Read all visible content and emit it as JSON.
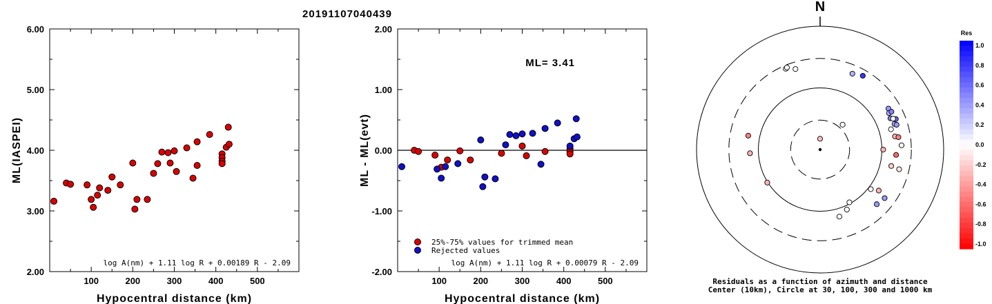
{
  "page_title": "20191107040439",
  "colors": {
    "red": "#dd0000",
    "blue": "#1010cc"
  },
  "chart_data": [
    {
      "type": "scatter",
      "id": "ml-vs-distance",
      "title": "",
      "xlabel": "Hypocentral distance (km)",
      "ylabel": "ML(IASPEI)",
      "xlim": [
        0,
        600
      ],
      "ylim": [
        2.0,
        6.0
      ],
      "xticks": [
        "100",
        "200",
        "300",
        "400",
        "500"
      ],
      "yticks": [
        "2.00",
        "3.00",
        "4.00",
        "5.00",
        "6.00"
      ],
      "formula": "log A(nm) + 1.11 log R + 0.00189 R - 2.09",
      "points": [
        [
          10,
          3.16
        ],
        [
          40,
          3.46
        ],
        [
          50,
          3.44
        ],
        [
          90,
          3.43
        ],
        [
          100,
          3.19
        ],
        [
          105,
          3.06
        ],
        [
          115,
          3.26
        ],
        [
          120,
          3.38
        ],
        [
          140,
          3.34
        ],
        [
          150,
          3.56
        ],
        [
          170,
          3.43
        ],
        [
          200,
          3.79
        ],
        [
          205,
          3.03
        ],
        [
          210,
          3.19
        ],
        [
          235,
          3.19
        ],
        [
          250,
          3.62
        ],
        [
          260,
          3.78
        ],
        [
          270,
          3.97
        ],
        [
          285,
          3.96
        ],
        [
          290,
          3.79
        ],
        [
          300,
          3.99
        ],
        [
          305,
          3.65
        ],
        [
          330,
          4.04
        ],
        [
          345,
          3.54
        ],
        [
          355,
          4.14
        ],
        [
          355,
          3.75
        ],
        [
          385,
          4.26
        ],
        [
          415,
          3.94
        ],
        [
          415,
          3.88
        ],
        [
          415,
          3.82
        ],
        [
          415,
          3.78
        ],
        [
          425,
          4.05
        ],
        [
          430,
          4.38
        ],
        [
          432,
          4.1
        ]
      ]
    },
    {
      "type": "scatter",
      "id": "residual-vs-distance",
      "title": "",
      "xlabel": "Hypocentral distance (km)",
      "ylabel": "ML - ML(evt)",
      "xlim": [
        0,
        600
      ],
      "ylim": [
        -2.0,
        2.0
      ],
      "xticks": [
        "100",
        "200",
        "300",
        "400",
        "500"
      ],
      "yticks": [
        "-2.00",
        "-1.00",
        "0.00",
        "1.00",
        "2.00"
      ],
      "ml_label": "ML= 3.41",
      "formula": "log A(nm) + 1.11 log R + 0.00079 R - 2.09",
      "legend": [
        {
          "label": "25%-75% values for trimmed mean",
          "color": "red"
        },
        {
          "label": "Rejected values",
          "color": "blue"
        }
      ],
      "series": [
        {
          "name": "25%-75% values for trimmed mean",
          "color": "red",
          "points": [
            [
              40,
              0.0
            ],
            [
              50,
              -0.02
            ],
            [
              90,
              -0.08
            ],
            [
              105,
              -0.28
            ],
            [
              120,
              -0.16
            ],
            [
              150,
              -0.01
            ],
            [
              175,
              -0.16
            ],
            [
              250,
              -0.05
            ],
            [
              300,
              0.07
            ],
            [
              310,
              -0.09
            ],
            [
              355,
              -0.02
            ],
            [
              415,
              0.03
            ],
            [
              415,
              -0.02
            ],
            [
              415,
              -0.06
            ]
          ]
        },
        {
          "name": "Rejected values",
          "color": "blue",
          "points": [
            [
              10,
              -0.27
            ],
            [
              95,
              -0.31
            ],
            [
              105,
              -0.46
            ],
            [
              115,
              -0.27
            ],
            [
              145,
              -0.22
            ],
            [
              200,
              0.17
            ],
            [
              205,
              -0.6
            ],
            [
              210,
              -0.44
            ],
            [
              235,
              -0.47
            ],
            [
              260,
              0.09
            ],
            [
              270,
              0.26
            ],
            [
              285,
              0.24
            ],
            [
              300,
              0.27
            ],
            [
              325,
              0.28
            ],
            [
              345,
              -0.23
            ],
            [
              355,
              0.36
            ],
            [
              385,
              0.45
            ],
            [
              415,
              0.07
            ],
            [
              425,
              0.19
            ],
            [
              430,
              0.52
            ],
            [
              432,
              0.22
            ]
          ]
        }
      ]
    },
    {
      "type": "polar-scatter",
      "id": "azimuth-residuals",
      "north_label": "N",
      "caption_line1": "Residuals as a function of azimuth and distance",
      "caption_line2": "Center (10km), Circle at 30, 100, 300 and 1000 km",
      "rings_km": [
        30,
        100,
        300,
        1000
      ],
      "colorbar": {
        "title": "Res",
        "min": -1.0,
        "max": 1.0,
        "ticks": [
          "1.0",
          "0.8",
          "0.6",
          "0.4",
          "0.2",
          "0.0",
          "-0.2",
          "-0.4",
          "-0.6",
          "-0.8",
          "-1.0"
        ]
      },
      "points": [
        {
          "az": 0,
          "dist_km": 15,
          "res": -0.25
        },
        {
          "az": 42,
          "dist_km": 35,
          "res": 0.0
        },
        {
          "az": 343,
          "dist_km": 232,
          "res": 0.0
        },
        {
          "az": 337,
          "dist_km": 265,
          "res": 0.0
        },
        {
          "az": 338,
          "dist_km": 272,
          "res": 0.0
        },
        {
          "az": 23,
          "dist_km": 217,
          "res": 0.3
        },
        {
          "az": 30,
          "dist_km": 241,
          "res": 0.8
        },
        {
          "az": 59,
          "dist_km": 195,
          "res": 0.4
        },
        {
          "az": 62,
          "dist_km": 183,
          "res": 0.3
        },
        {
          "az": 62,
          "dist_km": 203,
          "res": 0.5
        },
        {
          "az": 66,
          "dist_km": 176,
          "res": 0.5
        },
        {
          "az": 68,
          "dist_km": 210,
          "res": 0.6
        },
        {
          "az": 67,
          "dist_km": 192,
          "res": 0.0
        },
        {
          "az": 71,
          "dist_km": 188,
          "res": 0.3
        },
        {
          "az": 72,
          "dist_km": 200,
          "res": 0.4
        },
        {
          "az": 74,
          "dist_km": 156,
          "res": 0.0
        },
        {
          "az": 80,
          "dist_km": 170,
          "res": -0.3
        },
        {
          "az": 81,
          "dist_km": 192,
          "res": -0.5
        },
        {
          "az": 87,
          "dist_km": 209,
          "res": 0.0
        },
        {
          "az": 94,
          "dist_km": 171,
          "res": -0.6
        },
        {
          "az": 90,
          "dist_km": 105,
          "res": -0.3
        },
        {
          "az": 103,
          "dist_km": 152,
          "res": -0.2
        },
        {
          "az": 104,
          "dist_km": 208,
          "res": -0.1
        },
        {
          "az": 128,
          "dist_km": 110,
          "res": 0.0
        },
        {
          "az": 125,
          "dist_km": 144,
          "res": -0.3
        },
        {
          "az": 134,
          "dist_km": 188,
          "res": 0.4
        },
        {
          "az": 127,
          "dist_km": 203,
          "res": 0.4
        },
        {
          "az": 151,
          "dist_km": 95,
          "res": 0.0
        },
        {
          "az": 156,
          "dist_km": 116,
          "res": 0.0
        },
        {
          "az": 164,
          "dist_km": 135,
          "res": 0.0
        },
        {
          "az": 238,
          "dist_km": 102,
          "res": -0.3
        },
        {
          "az": 267,
          "dist_km": 137,
          "res": -0.3
        },
        {
          "az": 281,
          "dist_km": 153,
          "res": -0.5
        }
      ]
    }
  ]
}
